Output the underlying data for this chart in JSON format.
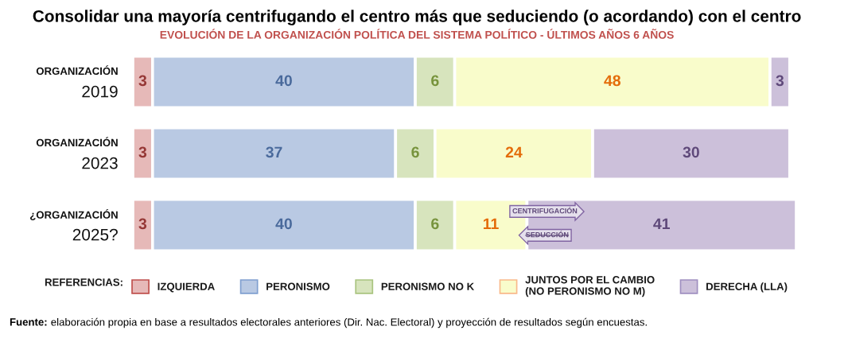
{
  "chart_data": {
    "type": "bar",
    "orientation": "horizontal",
    "stacked": true,
    "title": "Consolidar una mayoría centrifugando el centro más que seduciendo (o acordando) con el centro",
    "subtitle": "EVOLUCIÓN DE LA ORGANIZACIÓN POLÍTICA DEL SISTEMA POLÍTICO - ÚLTIMOS AÑOS 6 AÑOS",
    "categories": [
      "ORGANIZACIÓN\n2019",
      "ORGANIZACIÓN\n2023",
      "¿ORGANIZACIÓN\n2025?"
    ],
    "series": [
      {
        "name": "IZQUIERDA",
        "color": "#e6b9b8",
        "values": [
          3,
          3,
          3
        ]
      },
      {
        "name": "PERONISMO",
        "color": "#b9c9e3",
        "values": [
          40,
          37,
          40
        ]
      },
      {
        "name": "PERONISMO NO K",
        "color": "#d7e4bd",
        "values": [
          6,
          6,
          6
        ]
      },
      {
        "name": "JUNTOS POR EL CAMBIO\n(NO PERONISMO NO M)",
        "color": "#f9fccb",
        "values": [
          48,
          24,
          11
        ]
      },
      {
        "name": "DERECHA (LLA)",
        "color": "#ccc0da",
        "values": [
          3,
          30,
          41
        ]
      }
    ],
    "data_labels": true,
    "legend": "bottom",
    "legend_title": "REFERENCIAS:",
    "tick_labels": "y",
    "annotations": [
      "CENTRIFUGACIÓN",
      "SEDUCCIÓN",
      "Fuente:",
      "elaboración propia en base a resultados electorales anteriores (Dir. Nac. Electoral) y proyección de resultados según encuestas."
    ]
  }
}
